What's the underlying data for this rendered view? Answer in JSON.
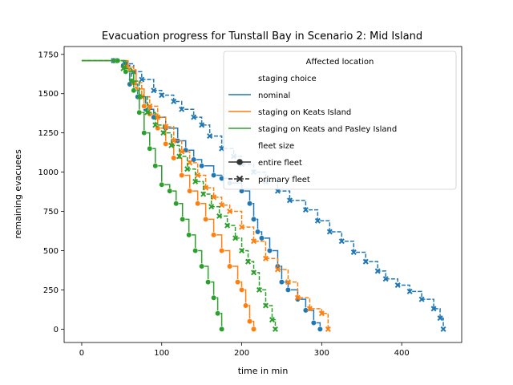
{
  "chart_data": {
    "type": "line",
    "title": "Evacuation progress for Tunstall Bay in Scenario 2: Mid Island",
    "xlabel": "time in min",
    "ylabel": "remaining evacuees",
    "xlim": [
      -22,
      475
    ],
    "ylim": [
      -85,
      1800
    ],
    "xticks": [
      0,
      100,
      200,
      300,
      400
    ],
    "yticks": [
      0,
      250,
      500,
      750,
      1000,
      1250,
      1500,
      1750
    ],
    "grid": false,
    "legend": {
      "placement": "top-right",
      "title": "Affected location",
      "staging_header": "staging choice",
      "fleet_header": "fleet size",
      "staging_items": [
        {
          "label": "nominal",
          "color": "#1f77b4"
        },
        {
          "label": "staging on Keats Island",
          "color": "#ff7f0e"
        },
        {
          "label": "staging on Keats and Pasley Island",
          "color": "#2ca02c"
        }
      ],
      "fleet_items": [
        {
          "label": "entire fleet",
          "marker": "circle",
          "line": "solid"
        },
        {
          "label": "primary fleet",
          "marker": "x",
          "line": "dashed"
        }
      ]
    },
    "series": [
      {
        "staging": "nominal",
        "fleet": "entire fleet",
        "color": "#1f77b4",
        "dashed": false,
        "marker": "circle",
        "x": [
          0,
          40,
          52,
          60,
          70,
          80,
          90,
          105,
          120,
          130,
          140,
          150,
          165,
          175,
          185,
          200,
          210,
          215,
          220,
          225,
          235,
          245,
          250,
          258,
          270,
          280,
          290,
          298
        ],
        "y": [
          1710,
          1710,
          1680,
          1560,
          1480,
          1400,
          1350,
          1280,
          1200,
          1140,
          1080,
          1040,
          980,
          960,
          930,
          880,
          800,
          700,
          620,
          580,
          500,
          400,
          300,
          250,
          190,
          120,
          40,
          0
        ]
      },
      {
        "staging": "nominal",
        "fleet": "primary fleet",
        "color": "#1f77b4",
        "dashed": true,
        "marker": "x",
        "x": [
          0,
          40,
          55,
          65,
          75,
          90,
          100,
          115,
          125,
          140,
          150,
          160,
          175,
          190,
          200,
          215,
          230,
          245,
          260,
          280,
          295,
          310,
          325,
          340,
          355,
          370,
          380,
          395,
          410,
          425,
          440,
          448,
          452
        ],
        "y": [
          1710,
          1710,
          1690,
          1640,
          1590,
          1520,
          1490,
          1450,
          1400,
          1350,
          1300,
          1230,
          1150,
          1100,
          1050,
          1000,
          940,
          880,
          820,
          760,
          690,
          620,
          560,
          490,
          430,
          370,
          320,
          280,
          240,
          190,
          130,
          70,
          0
        ]
      },
      {
        "staging": "staging on Keats Island",
        "fleet": "entire fleet",
        "color": "#ff7f0e",
        "dashed": false,
        "marker": "circle",
        "x": [
          0,
          45,
          58,
          68,
          78,
          85,
          95,
          105,
          115,
          125,
          135,
          145,
          155,
          165,
          175,
          185,
          195,
          200,
          205,
          210,
          215
        ],
        "y": [
          1710,
          1710,
          1650,
          1530,
          1420,
          1370,
          1280,
          1180,
          1090,
          980,
          880,
          800,
          700,
          600,
          500,
          400,
          300,
          250,
          150,
          50,
          0
        ]
      },
      {
        "staging": "staging on Keats Island",
        "fleet": "primary fleet",
        "color": "#ff7f0e",
        "dashed": true,
        "marker": "x",
        "x": [
          0,
          42,
          55,
          65,
          75,
          85,
          95,
          105,
          115,
          125,
          135,
          145,
          155,
          165,
          175,
          185,
          200,
          215,
          230,
          245,
          258,
          270,
          285,
          300,
          308
        ],
        "y": [
          1710,
          1710,
          1670,
          1570,
          1480,
          1420,
          1350,
          1290,
          1200,
          1130,
          1060,
          980,
          900,
          840,
          790,
          750,
          650,
          560,
          450,
          380,
          300,
          200,
          130,
          100,
          0
        ]
      },
      {
        "staging": "staging on Keats and Pasley Island",
        "fleet": "entire fleet",
        "color": "#2ca02c",
        "dashed": false,
        "marker": "circle",
        "x": [
          0,
          45,
          55,
          65,
          72,
          78,
          85,
          92,
          100,
          110,
          118,
          126,
          134,
          142,
          150,
          158,
          165,
          170,
          175
        ],
        "y": [
          1710,
          1710,
          1640,
          1520,
          1380,
          1250,
          1150,
          1040,
          920,
          880,
          800,
          700,
          600,
          500,
          400,
          300,
          200,
          100,
          0
        ]
      },
      {
        "staging": "staging on Keats and Pasley Island",
        "fleet": "primary fleet",
        "color": "#2ca02c",
        "dashed": true,
        "marker": "x",
        "x": [
          0,
          42,
          52,
          62,
          72,
          82,
          92,
          102,
          112,
          122,
          132,
          142,
          152,
          162,
          172,
          182,
          192,
          200,
          208,
          215,
          222,
          230,
          238,
          242
        ],
        "y": [
          1710,
          1710,
          1660,
          1580,
          1480,
          1380,
          1300,
          1250,
          1170,
          1100,
          1020,
          940,
          860,
          780,
          720,
          660,
          580,
          500,
          430,
          360,
          250,
          150,
          60,
          0
        ]
      }
    ]
  }
}
